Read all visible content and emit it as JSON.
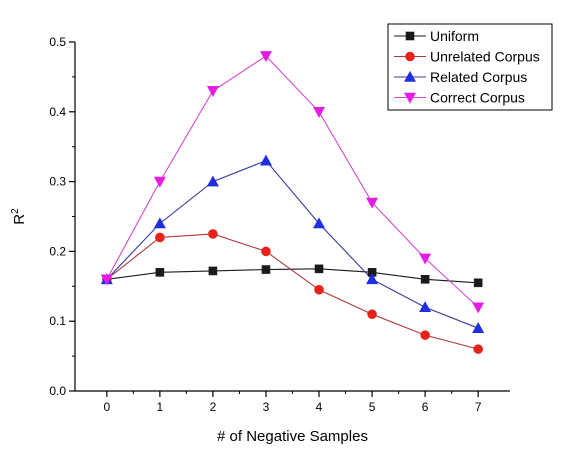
{
  "chart_data": {
    "type": "line",
    "xlabel": "# of Negative Samples",
    "ylabel": "R",
    "ylabel_superscript": "2",
    "x": [
      0,
      1,
      2,
      3,
      4,
      5,
      6,
      7
    ],
    "xlim": [
      -0.6,
      7.6
    ],
    "ylim": [
      0.0,
      0.5
    ],
    "xticks": [
      0,
      1,
      2,
      3,
      4,
      5,
      6,
      7
    ],
    "yticks": [
      "0.0",
      "0.1",
      "0.2",
      "0.3",
      "0.4",
      "0.5"
    ],
    "legend_position": "top-right",
    "grid": false,
    "series": [
      {
        "name": "Uniform",
        "color": "#1a1a1a",
        "line_color": "#1a1a1a",
        "marker": "square",
        "values": [
          0.16,
          0.17,
          0.172,
          0.174,
          0.175,
          0.17,
          0.16,
          0.155
        ]
      },
      {
        "name": "Unrelated Corpus",
        "color": "#e8221b",
        "line_color": "#b03a3a",
        "marker": "circle",
        "values": [
          0.16,
          0.22,
          0.225,
          0.2,
          0.145,
          0.11,
          0.08,
          0.06
        ]
      },
      {
        "name": "Related Corpus",
        "color": "#1f2ee0",
        "line_color": "#3a3aa0",
        "marker": "triangle-up",
        "values": [
          0.16,
          0.24,
          0.3,
          0.33,
          0.24,
          0.16,
          0.12,
          0.09
        ]
      },
      {
        "name": "Correct Corpus",
        "color": "#e51ce5",
        "line_color": "#d24ad2",
        "marker": "triangle-down",
        "values": [
          0.16,
          0.3,
          0.43,
          0.48,
          0.4,
          0.27,
          0.19,
          0.12
        ]
      }
    ]
  }
}
